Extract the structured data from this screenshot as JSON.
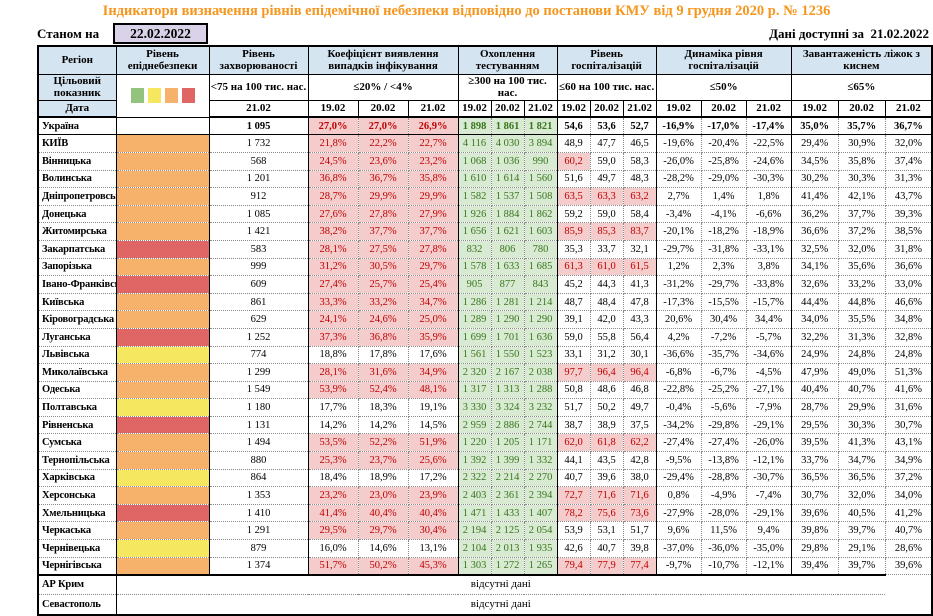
{
  "title": "Індикатори визначення рівнів епідемічної небезпеки відповідно до постанови КМУ від 9 грудня 2020 р. № 1236",
  "as_of_label": "Станом на",
  "as_of_date": "22.02.2022",
  "available_label": "Дані доступні за",
  "available_date": "21.02.2022",
  "header": {
    "region": "Регіон",
    "target": "Цільовий показник",
    "date": "Дата",
    "groups": [
      {
        "title": "Рівень епіднебезпеки",
        "target": "",
        "dates": []
      },
      {
        "title": "Рівень захворюваності",
        "target": "<75 на 100 тис. нас.",
        "dates": [
          "21.02"
        ]
      },
      {
        "title": "Коефіцієнт виявлення випадків інфікування",
        "target": "≤20% / <4%",
        "dates": [
          "19.02",
          "20.02",
          "21.02"
        ]
      },
      {
        "title": "Охоплення тестуванням",
        "target": "≥300 на 100 тис. нас.",
        "dates": [
          "19.02",
          "20.02",
          "21.02"
        ]
      },
      {
        "title": "Рівень госпіталізацій",
        "target": "≤60 на 100 тис. нас.",
        "dates": [
          "19.02",
          "20.02",
          "21.02"
        ]
      },
      {
        "title": "Динаміка рівня госпіталізацій",
        "target": "≤50%",
        "dates": [
          "19.02",
          "20.02",
          "21.02"
        ]
      },
      {
        "title": "Завантаженість ліжок з киснем",
        "target": "≤65%",
        "dates": [
          "19.02",
          "20.02",
          "21.02"
        ]
      }
    ]
  },
  "colors": {
    "title_orange": "#f6961d",
    "header_blue": "#d5e4f1",
    "date_box_lavender": "#d9d2e9",
    "coef_alert_bg": "#f4cccc",
    "coef_alert_text": "#c00000",
    "testing_bg": "#d9ead3",
    "testing_text": "#38761d",
    "legend": [
      "#93c47d",
      "#f5e75f",
      "#f6b26b",
      "#e06666"
    ],
    "levels": {
      "none": "",
      "green": "#93c47d",
      "yellow": "#f5e75f",
      "orange": "#f6b26b",
      "red": "#e06666"
    }
  },
  "thresholds": {
    "coef_max": 20,
    "hosp_max": 60,
    "dyn_max": 50,
    "bed_max": 65
  },
  "rows": [
    {
      "region": "Україна",
      "bold": true,
      "level": "none",
      "morbidity": "1 095",
      "coef": [
        "27,0%",
        "27,0%",
        "26,9%"
      ],
      "test": [
        "1 898",
        "1 861",
        "1 821"
      ],
      "hosp": [
        "54,6",
        "53,6",
        "52,7"
      ],
      "dyn": [
        "-16,9%",
        "-17,0%",
        "-17,4%"
      ],
      "bed": [
        "35,0%",
        "35,7%",
        "36,7%"
      ]
    },
    {
      "region": "КИЇВ",
      "bold": false,
      "level": "orange",
      "morbidity": "1 732",
      "coef": [
        "21,8%",
        "22,2%",
        "22,7%"
      ],
      "test": [
        "4 116",
        "4 030",
        "3 894"
      ],
      "hosp": [
        "48,9",
        "47,7",
        "46,5"
      ],
      "dyn": [
        "-19,6%",
        "-20,4%",
        "-22,5%"
      ],
      "bed": [
        "29,4%",
        "30,9%",
        "32,0%"
      ]
    },
    {
      "region": "Вінницька",
      "bold": false,
      "level": "orange",
      "morbidity": "568",
      "coef": [
        "24,5%",
        "23,6%",
        "23,2%"
      ],
      "test": [
        "1 068",
        "1 036",
        "990"
      ],
      "hosp": [
        "60,2",
        "59,0",
        "58,3"
      ],
      "dyn": [
        "-26,0%",
        "-25,8%",
        "-24,6%"
      ],
      "bed": [
        "34,5%",
        "35,8%",
        "37,4%"
      ]
    },
    {
      "region": "Волинська",
      "bold": false,
      "level": "orange",
      "morbidity": "1 201",
      "coef": [
        "36,8%",
        "36,7%",
        "35,8%"
      ],
      "test": [
        "1 610",
        "1 614",
        "1 560"
      ],
      "hosp": [
        "51,6",
        "49,7",
        "48,3"
      ],
      "dyn": [
        "-28,2%",
        "-29,0%",
        "-30,3%"
      ],
      "bed": [
        "30,2%",
        "30,3%",
        "31,3%"
      ]
    },
    {
      "region": "Дніпропетровська",
      "bold": false,
      "level": "orange",
      "morbidity": "912",
      "coef": [
        "28,7%",
        "29,9%",
        "29,9%"
      ],
      "test": [
        "1 582",
        "1 537",
        "1 508"
      ],
      "hosp": [
        "63,5",
        "63,3",
        "63,2"
      ],
      "dyn": [
        "2,7%",
        "1,4%",
        "1,8%"
      ],
      "bed": [
        "41,4%",
        "42,1%",
        "43,7%"
      ]
    },
    {
      "region": "Донецька",
      "bold": false,
      "level": "orange",
      "morbidity": "1 085",
      "coef": [
        "27,6%",
        "27,8%",
        "27,9%"
      ],
      "test": [
        "1 926",
        "1 884",
        "1 862"
      ],
      "hosp": [
        "59,2",
        "59,0",
        "58,4"
      ],
      "dyn": [
        "-3,4%",
        "-4,1%",
        "-6,6%"
      ],
      "bed": [
        "36,2%",
        "37,7%",
        "39,3%"
      ]
    },
    {
      "region": "Житомирська",
      "bold": false,
      "level": "orange",
      "morbidity": "1 421",
      "coef": [
        "38,2%",
        "37,7%",
        "37,7%"
      ],
      "test": [
        "1 656",
        "1 621",
        "1 603"
      ],
      "hosp": [
        "85,9",
        "85,3",
        "83,7"
      ],
      "dyn": [
        "-20,1%",
        "-18,2%",
        "-18,9%"
      ],
      "bed": [
        "36,6%",
        "37,2%",
        "38,5%"
      ]
    },
    {
      "region": "Закарпатська",
      "bold": false,
      "level": "red",
      "morbidity": "583",
      "coef": [
        "28,1%",
        "27,5%",
        "27,8%"
      ],
      "test": [
        "832",
        "806",
        "780"
      ],
      "hosp": [
        "35,3",
        "33,7",
        "32,1"
      ],
      "dyn": [
        "-29,7%",
        "-31,8%",
        "-33,1%"
      ],
      "bed": [
        "32,5%",
        "32,0%",
        "31,8%"
      ]
    },
    {
      "region": "Запорізька",
      "bold": false,
      "level": "orange",
      "morbidity": "999",
      "coef": [
        "31,2%",
        "30,5%",
        "29,7%"
      ],
      "test": [
        "1 578",
        "1 633",
        "1 685"
      ],
      "hosp": [
        "61,3",
        "61,0",
        "61,5"
      ],
      "dyn": [
        "1,2%",
        "2,3%",
        "3,8%"
      ],
      "bed": [
        "34,1%",
        "35,6%",
        "36,6%"
      ]
    },
    {
      "region": "Івано-Франківська",
      "bold": false,
      "level": "red",
      "morbidity": "609",
      "coef": [
        "27,4%",
        "25,7%",
        "25,4%"
      ],
      "test": [
        "905",
        "877",
        "843"
      ],
      "hosp": [
        "45,2",
        "44,3",
        "41,3"
      ],
      "dyn": [
        "-31,2%",
        "-29,7%",
        "-33,8%"
      ],
      "bed": [
        "32,6%",
        "33,2%",
        "33,0%"
      ]
    },
    {
      "region": "Київська",
      "bold": false,
      "level": "orange",
      "morbidity": "861",
      "coef": [
        "33,3%",
        "33,2%",
        "34,7%"
      ],
      "test": [
        "1 286",
        "1 281",
        "1 214"
      ],
      "hosp": [
        "48,7",
        "48,4",
        "47,8"
      ],
      "dyn": [
        "-17,3%",
        "-15,5%",
        "-15,7%"
      ],
      "bed": [
        "44,4%",
        "44,8%",
        "46,6%"
      ]
    },
    {
      "region": "Кіровоградська",
      "bold": false,
      "level": "orange",
      "morbidity": "629",
      "coef": [
        "24,1%",
        "24,6%",
        "25,0%"
      ],
      "test": [
        "1 289",
        "1 290",
        "1 290"
      ],
      "hosp": [
        "39,1",
        "42,0",
        "43,3"
      ],
      "dyn": [
        "20,6%",
        "30,4%",
        "34,4%"
      ],
      "bed": [
        "34,0%",
        "35,5%",
        "34,8%"
      ]
    },
    {
      "region": "Луганська",
      "bold": false,
      "level": "red",
      "morbidity": "1 252",
      "coef": [
        "37,3%",
        "36,8%",
        "35,9%"
      ],
      "test": [
        "1 699",
        "1 701",
        "1 636"
      ],
      "hosp": [
        "59,0",
        "55,8",
        "56,4"
      ],
      "dyn": [
        "4,2%",
        "-7,2%",
        "-5,7%"
      ],
      "bed": [
        "32,2%",
        "31,3%",
        "32,8%"
      ]
    },
    {
      "region": "Львівська",
      "bold": false,
      "level": "yellow",
      "morbidity": "774",
      "coef": [
        "18,8%",
        "17,8%",
        "17,6%"
      ],
      "test": [
        "1 561",
        "1 550",
        "1 523"
      ],
      "hosp": [
        "33,1",
        "31,2",
        "30,1"
      ],
      "dyn": [
        "-36,6%",
        "-35,7%",
        "-34,6%"
      ],
      "bed": [
        "24,9%",
        "24,8%",
        "24,8%"
      ]
    },
    {
      "region": "Миколаївська",
      "bold": false,
      "level": "orange",
      "morbidity": "1 299",
      "coef": [
        "28,1%",
        "31,6%",
        "34,9%"
      ],
      "test": [
        "2 320",
        "2 167",
        "2 038"
      ],
      "hosp": [
        "97,7",
        "96,4",
        "96,4"
      ],
      "dyn": [
        "-6,8%",
        "-6,7%",
        "-4,5%"
      ],
      "bed": [
        "47,9%",
        "49,0%",
        "51,3%"
      ]
    },
    {
      "region": "Одеська",
      "bold": false,
      "level": "orange",
      "morbidity": "1 549",
      "coef": [
        "53,9%",
        "52,4%",
        "48,1%"
      ],
      "test": [
        "1 317",
        "1 313",
        "1 288"
      ],
      "hosp": [
        "50,8",
        "48,6",
        "46,8"
      ],
      "dyn": [
        "-22,8%",
        "-25,2%",
        "-27,1%"
      ],
      "bed": [
        "40,4%",
        "40,7%",
        "41,6%"
      ]
    },
    {
      "region": "Полтавська",
      "bold": false,
      "level": "yellow",
      "morbidity": "1 180",
      "coef": [
        "17,7%",
        "18,3%",
        "19,1%"
      ],
      "test": [
        "3 330",
        "3 324",
        "3 232"
      ],
      "hosp": [
        "51,7",
        "50,2",
        "49,7"
      ],
      "dyn": [
        "-0,4%",
        "-5,6%",
        "-7,9%"
      ],
      "bed": [
        "28,7%",
        "29,9%",
        "31,6%"
      ]
    },
    {
      "region": "Рівненська",
      "bold": false,
      "level": "red",
      "morbidity": "1 131",
      "coef": [
        "14,2%",
        "14,2%",
        "14,5%"
      ],
      "test": [
        "2 959",
        "2 886",
        "2 744"
      ],
      "hosp": [
        "38,7",
        "38,9",
        "37,5"
      ],
      "dyn": [
        "-34,2%",
        "-29,8%",
        "-29,1%"
      ],
      "bed": [
        "29,5%",
        "30,3%",
        "30,7%"
      ]
    },
    {
      "region": "Сумська",
      "bold": false,
      "level": "orange",
      "morbidity": "1 494",
      "coef": [
        "53,5%",
        "52,2%",
        "51,9%"
      ],
      "test": [
        "1 220",
        "1 205",
        "1 171"
      ],
      "hosp": [
        "62,0",
        "61,8",
        "62,2"
      ],
      "dyn": [
        "-27,4%",
        "-27,4%",
        "-26,0%"
      ],
      "bed": [
        "39,5%",
        "41,3%",
        "43,1%"
      ]
    },
    {
      "region": "Тернопільська",
      "bold": false,
      "level": "orange",
      "morbidity": "880",
      "coef": [
        "25,3%",
        "23,7%",
        "25,6%"
      ],
      "test": [
        "1 392",
        "1 399",
        "1 332"
      ],
      "hosp": [
        "44,1",
        "43,5",
        "42,8"
      ],
      "dyn": [
        "-9,5%",
        "-13,8%",
        "-12,1%"
      ],
      "bed": [
        "33,7%",
        "34,7%",
        "34,9%"
      ]
    },
    {
      "region": "Харківська",
      "bold": false,
      "level": "yellow",
      "morbidity": "864",
      "coef": [
        "18,4%",
        "18,9%",
        "17,2%"
      ],
      "test": [
        "2 322",
        "2 214",
        "2 270"
      ],
      "hosp": [
        "40,7",
        "39,6",
        "38,0"
      ],
      "dyn": [
        "-29,4%",
        "-28,8%",
        "-30,7%"
      ],
      "bed": [
        "36,5%",
        "36,5%",
        "37,2%"
      ]
    },
    {
      "region": "Херсонська",
      "bold": false,
      "level": "orange",
      "morbidity": "1 353",
      "coef": [
        "23,2%",
        "23,0%",
        "23,9%"
      ],
      "test": [
        "2 403",
        "2 361",
        "2 394"
      ],
      "hosp": [
        "72,7",
        "71,6",
        "71,6"
      ],
      "dyn": [
        "0,8%",
        "-4,9%",
        "-7,4%"
      ],
      "bed": [
        "30,7%",
        "32,0%",
        "34,0%"
      ]
    },
    {
      "region": "Хмельницька",
      "bold": false,
      "level": "red",
      "morbidity": "1 410",
      "coef": [
        "41,4%",
        "40,4%",
        "40,4%"
      ],
      "test": [
        "1 471",
        "1 433",
        "1 407"
      ],
      "hosp": [
        "78,2",
        "75,6",
        "73,6"
      ],
      "dyn": [
        "-27,9%",
        "-28,0%",
        "-29,1%"
      ],
      "bed": [
        "39,6%",
        "40,5%",
        "41,2%"
      ]
    },
    {
      "region": "Черкаська",
      "bold": false,
      "level": "orange",
      "morbidity": "1 291",
      "coef": [
        "29,5%",
        "29,7%",
        "30,4%"
      ],
      "test": [
        "2 194",
        "2 125",
        "2 054"
      ],
      "hosp": [
        "53,9",
        "53,1",
        "51,7"
      ],
      "dyn": [
        "9,6%",
        "11,5%",
        "9,4%"
      ],
      "bed": [
        "39,8%",
        "39,7%",
        "40,7%"
      ]
    },
    {
      "region": "Чернівецька",
      "bold": false,
      "level": "yellow",
      "morbidity": "879",
      "coef": [
        "16,0%",
        "14,6%",
        "13,1%"
      ],
      "test": [
        "2 104",
        "2 013",
        "1 935"
      ],
      "hosp": [
        "42,6",
        "40,7",
        "39,8"
      ],
      "dyn": [
        "-37,0%",
        "-36,0%",
        "-35,0%"
      ],
      "bed": [
        "29,8%",
        "29,1%",
        "28,6%"
      ]
    },
    {
      "region": "Чернігівська",
      "bold": false,
      "level": "orange",
      "morbidity": "1 374",
      "coef": [
        "51,7%",
        "50,2%",
        "45,3%"
      ],
      "test": [
        "1 303",
        "1 272",
        "1 265"
      ],
      "hosp": [
        "79,4",
        "77,9",
        "77,4"
      ],
      "dyn": [
        "-9,7%",
        "-10,7%",
        "-12,1%"
      ],
      "bed": [
        "39,4%",
        "39,7%",
        "39,6%"
      ]
    }
  ],
  "no_data_rows": [
    {
      "region": "АР Крим",
      "text": "відсутні дані"
    },
    {
      "region": "Севастополь",
      "text": "відсутні дані"
    }
  ]
}
